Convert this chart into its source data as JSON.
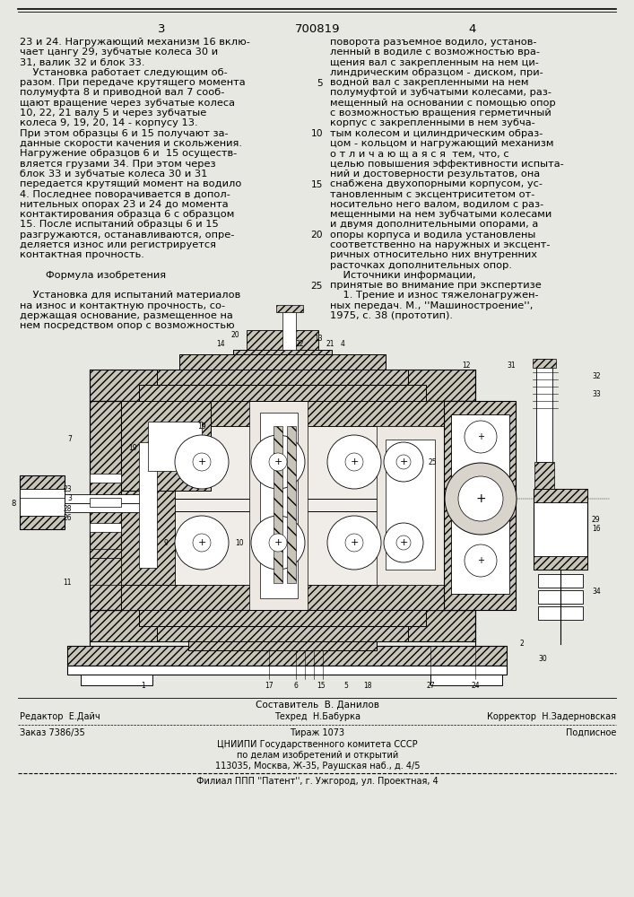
{
  "bg_color": "#e8e8e3",
  "page_color": "#f7f7f4",
  "patent_number": "700819",
  "page_left": "3",
  "page_right": "4",
  "left_col_lines": [
    "23 и 24. Нагружающий механизм 16 вклю-",
    "чает цангу 29, зубчатые колеса 30 и",
    "31, валик 32 и блок 33.",
    "    Установка работает следующим об-",
    "разом. При передаче крутящего момента",
    "полумуфта 8 и приводной вал 7 сооб-",
    "щают вращение через зубчатые колеса",
    "10, 22, 21 валу 5 и через зубчатые",
    "колеса 9, 19, 20, 14 - корпусу 13.",
    "При этом образцы 6 и 15 получают за-",
    "данные скорости качения и скольжения.",
    "Нагружение образцов 6 и  15 осуществ-",
    "вляется грузами 34. При этом через",
    "блок 33 и зубчатые колеса 30 и 31",
    "передается крутящий момент на водило",
    "4. Последнее поворачивается в допол-",
    "нительных опорах 23 и 24 до момента",
    "контактирования образца 6 с образцом",
    "15. После испытаний образцы 6 и 15",
    "разгружаются, останавливаются, опре-",
    "деляется износ или регистрируется",
    "контактная прочность.",
    "",
    "        Формула изобретения",
    "",
    "    Установка для испытаний материалов",
    "на износ и контактную прочность, со-",
    "держащая основание, размещенное на",
    "нем посредством опор с возможностью"
  ],
  "right_col_lines": [
    "поворота разъемное водило, установ-",
    "ленный в водиле с возможностью вра-",
    "щения вал с закрепленным на нем ци-",
    "линдрическим образцом - диском, при-",
    "водной вал с закрепленными на нем",
    "полумуфтой и зубчатыми колесами, раз-",
    "мещенный на основании с помощью опор",
    "с возможностью вращения герметичный",
    "корпус с закрепленными в нем зубча-",
    "тым колесом и цилиндрическим образ-",
    "цом - кольцом и нагружающий механизм",
    "о т л и ч а ю щ а я с я  тем, что, с",
    "целью повышения эффективности испыта-",
    "ний и достоверности результатов, она",
    "снабжена двухопорными корпусом, ус-",
    "тановленным с эксцентриситетом от-",
    "носительно него валом, водилом с раз-",
    "мещенными на нем зубчатыми колесами",
    "и двумя дополнительными опорами, а",
    "опоры корпуса и водила установлены",
    "соответственно на наружных и эксцент-",
    "ричных относительно них внутренних",
    "расточках дополнительных опор.",
    "    Источники информации,",
    "принятые во внимание при экспертизе",
    "    1. Трение и износ тяжелонагружен-",
    "ных передач. М., ''Машиностроение'',",
    "1975, с. 38 (прототип)."
  ],
  "line_numbers": [
    5,
    10,
    15,
    20,
    25
  ],
  "text_fontsize": 8.2,
  "header_fontsize": 9.5,
  "sans_font": "DejaVu Sans"
}
